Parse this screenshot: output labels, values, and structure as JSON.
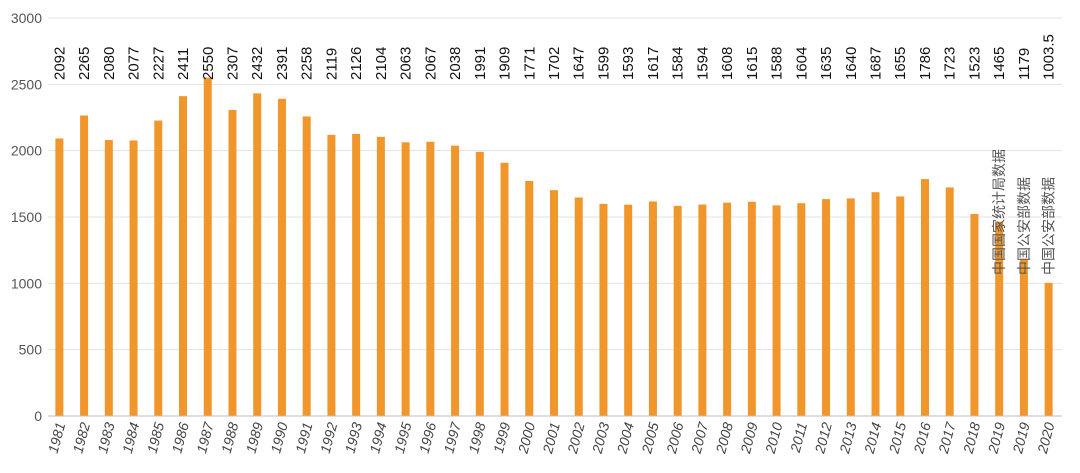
{
  "chart_data": {
    "type": "bar",
    "title": "",
    "xlabel": "",
    "ylabel": "",
    "ylim": [
      0,
      3000
    ],
    "yticks": [
      0,
      500,
      1000,
      1500,
      2000,
      2500,
      3000
    ],
    "grid": true,
    "bar_color": "#f0962a",
    "categories": [
      "1981",
      "1982",
      "1983",
      "1984",
      "1985",
      "1986",
      "1987",
      "1988",
      "1989",
      "1990",
      "1991",
      "1992",
      "1993",
      "1994",
      "1995",
      "1996",
      "1997",
      "1998",
      "1999",
      "2000",
      "2001",
      "2002",
      "2003",
      "2004",
      "2005",
      "2006",
      "2007",
      "2008",
      "2009",
      "2010",
      "2011",
      "2012",
      "2013",
      "2014",
      "2015",
      "2016",
      "2017",
      "2018",
      "2019",
      "2019",
      "2020"
    ],
    "values": [
      2092,
      2265,
      2080,
      2077,
      2227,
      2411,
      2550,
      2307,
      2432,
      2391,
      2258,
      2119,
      2126,
      2104,
      2063,
      2067,
      2038,
      1991,
      1909,
      1771,
      1702,
      1647,
      1599,
      1593,
      1617,
      1584,
      1594,
      1608,
      1615,
      1588,
      1604,
      1635,
      1640,
      1687,
      1655,
      1786,
      1723,
      1523,
      1465,
      1179,
      1003.5
    ],
    "data_labels": [
      "2092",
      "2265",
      "2080",
      "2077",
      "2227",
      "2411",
      "2550",
      "2307",
      "2432",
      "2391",
      "2258",
      "2119",
      "2126",
      "2104",
      "2063",
      "2067",
      "2038",
      "1991",
      "1909",
      "1771",
      "1702",
      "1647",
      "1599",
      "1593",
      "1617",
      "1584",
      "1594",
      "1608",
      "1615",
      "1588",
      "1604",
      "1635",
      "1640",
      "1687",
      "1655",
      "1786",
      "1723",
      "1523",
      "1465",
      "1179",
      "1003.5"
    ],
    "annotations": [
      {
        "bar_index": 38,
        "text": "中国国家统计局数据"
      },
      {
        "bar_index": 39,
        "text": "中国公安部数据"
      },
      {
        "bar_index": 40,
        "text": "中国公安部数据"
      }
    ]
  }
}
